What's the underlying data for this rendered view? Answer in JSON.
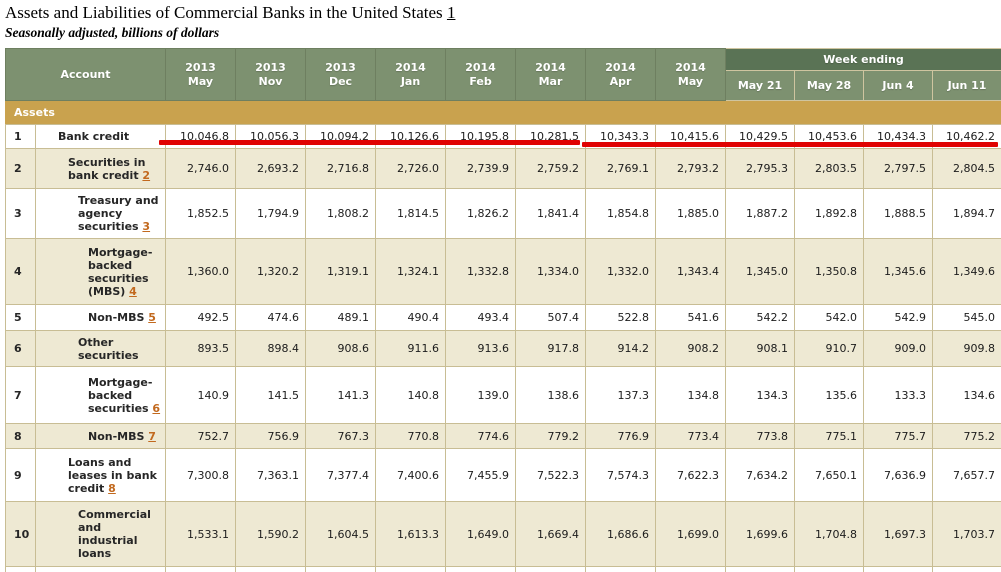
{
  "page": {
    "title": "Assets and Liabilities of Commercial Banks in the United States",
    "title_footnote": "1",
    "subtitle": "Seasonally adjusted, billions of dollars"
  },
  "colors": {
    "header_green": "#7d9170",
    "week_group_green": "#5a7355",
    "section_gold": "#c9a24e",
    "zebra_beige": "#eee9d3",
    "border_tan": "#c8bd94",
    "footnote_orange": "#c2691e",
    "annotation_red": "#e00202"
  },
  "table": {
    "corner_header": "Account",
    "month_columns": [
      {
        "year": "2013",
        "month": "May"
      },
      {
        "year": "2013",
        "month": "Nov"
      },
      {
        "year": "2013",
        "month": "Dec"
      },
      {
        "year": "2014",
        "month": "Jan"
      },
      {
        "year": "2014",
        "month": "Feb"
      },
      {
        "year": "2014",
        "month": "Mar"
      },
      {
        "year": "2014",
        "month": "Apr"
      },
      {
        "year": "2014",
        "month": "May"
      }
    ],
    "week_group_label": "Week ending",
    "week_columns": [
      "May 21",
      "May 28",
      "Jun 4",
      "Jun 11"
    ],
    "section_label": "Assets",
    "rows": [
      {
        "num": "1",
        "label": "Bank credit",
        "footnote": "",
        "indent": 1,
        "values": [
          "10,046.8",
          "10,056.3",
          "10,094.2",
          "10,126.6",
          "10,195.8",
          "10,281.5",
          "10,343.3",
          "10,415.6",
          "10,429.5",
          "10,453.6",
          "10,434.3",
          "10,462.2"
        ]
      },
      {
        "num": "2",
        "label": "Securities in bank credit",
        "footnote": "2",
        "indent": 2,
        "values": [
          "2,746.0",
          "2,693.2",
          "2,716.8",
          "2,726.0",
          "2,739.9",
          "2,759.2",
          "2,769.1",
          "2,793.2",
          "2,795.3",
          "2,803.5",
          "2,797.5",
          "2,804.5"
        ]
      },
      {
        "num": "3",
        "label": "Treasury and agency securities",
        "footnote": "3",
        "indent": 3,
        "values": [
          "1,852.5",
          "1,794.9",
          "1,808.2",
          "1,814.5",
          "1,826.2",
          "1,841.4",
          "1,854.8",
          "1,885.0",
          "1,887.2",
          "1,892.8",
          "1,888.5",
          "1,894.7"
        ]
      },
      {
        "num": "4",
        "label": "Mortgage-backed securities (MBS)",
        "footnote": "4",
        "indent": 4,
        "values": [
          "1,360.0",
          "1,320.2",
          "1,319.1",
          "1,324.1",
          "1,332.8",
          "1,334.0",
          "1,332.0",
          "1,343.4",
          "1,345.0",
          "1,350.8",
          "1,345.6",
          "1,349.6"
        ]
      },
      {
        "num": "5",
        "label": "Non-MBS",
        "footnote": "5",
        "indent": 4,
        "values": [
          "492.5",
          "474.6",
          "489.1",
          "490.4",
          "493.4",
          "507.4",
          "522.8",
          "541.6",
          "542.2",
          "542.0",
          "542.9",
          "545.0"
        ]
      },
      {
        "num": "6",
        "label": "Other securities",
        "footnote": "",
        "indent": 3,
        "values": [
          "893.5",
          "898.4",
          "908.6",
          "911.6",
          "913.6",
          "917.8",
          "914.2",
          "908.2",
          "908.1",
          "910.7",
          "909.0",
          "909.8"
        ]
      },
      {
        "num": "7",
        "label": "Mortgage-backed securities",
        "footnote": "6",
        "indent": 4,
        "values": [
          "140.9",
          "141.5",
          "141.3",
          "140.8",
          "139.0",
          "138.6",
          "137.3",
          "134.8",
          "134.3",
          "135.6",
          "133.3",
          "134.6"
        ]
      },
      {
        "num": "8",
        "label": "Non-MBS",
        "footnote": "7",
        "indent": 4,
        "values": [
          "752.7",
          "756.9",
          "767.3",
          "770.8",
          "774.6",
          "779.2",
          "776.9",
          "773.4",
          "773.8",
          "775.1",
          "775.7",
          "775.2"
        ]
      },
      {
        "num": "9",
        "label": "Loans and leases in bank credit",
        "footnote": "8",
        "indent": 2,
        "values": [
          "7,300.8",
          "7,363.1",
          "7,377.4",
          "7,400.6",
          "7,455.9",
          "7,522.3",
          "7,574.3",
          "7,622.3",
          "7,634.2",
          "7,650.1",
          "7,636.9",
          "7,657.7"
        ]
      },
      {
        "num": "10",
        "label": "Commercial and industrial loans",
        "footnote": "",
        "indent": 3,
        "values": [
          "1,533.1",
          "1,590.2",
          "1,604.5",
          "1,613.3",
          "1,649.0",
          "1,669.4",
          "1,686.6",
          "1,699.0",
          "1,699.6",
          "1,704.8",
          "1,697.3",
          "1,703.7"
        ]
      }
    ]
  },
  "annotation": {
    "type": "red-underline",
    "target_row": "Bank credit"
  }
}
